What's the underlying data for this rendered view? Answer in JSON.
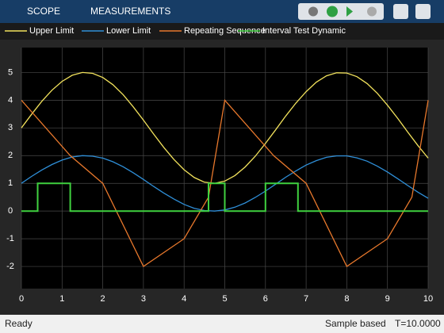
{
  "toolbar": {
    "tabs": [
      "SCOPE",
      "MEASUREMENTS"
    ]
  },
  "chart_data": {
    "type": "line",
    "grid": true,
    "xlim": [
      0,
      10
    ],
    "ylim": [
      -2.8,
      5.9
    ],
    "xticks": [
      0,
      1,
      2,
      3,
      4,
      5,
      6,
      7,
      8,
      9,
      10
    ],
    "yticks": [
      -2,
      -1,
      0,
      1,
      2,
      3,
      4,
      5
    ],
    "series": [
      {
        "name": "Upper Limit",
        "color": "#f2e25c",
        "x": [
          0,
          0.25,
          0.5,
          0.75,
          1,
          1.25,
          1.5,
          1.75,
          2,
          2.25,
          2.5,
          2.75,
          3,
          3.25,
          3.5,
          3.75,
          4,
          4.25,
          4.5,
          4.75,
          5,
          5.25,
          5.5,
          5.75,
          6,
          6.25,
          6.5,
          6.75,
          7,
          7.25,
          7.5,
          7.75,
          8,
          8.25,
          8.5,
          8.75,
          9,
          9.25,
          9.5,
          9.75,
          10
        ],
        "values": [
          3,
          3.49,
          3.96,
          4.36,
          4.68,
          4.9,
          5,
          4.97,
          4.82,
          4.56,
          4.2,
          3.76,
          3.28,
          2.78,
          2.3,
          1.86,
          1.49,
          1.21,
          1.04,
          1,
          1.08,
          1.28,
          1.59,
          1.98,
          2.44,
          2.93,
          3.43,
          3.9,
          4.31,
          4.65,
          4.88,
          4.99,
          4.98,
          4.85,
          4.6,
          4.25,
          3.82,
          3.35,
          2.85,
          2.36,
          1.91
        ]
      },
      {
        "name": "Lower Limit",
        "color": "#2f8fd8",
        "x": [
          0,
          0.25,
          0.5,
          0.75,
          1,
          1.25,
          1.5,
          1.75,
          2,
          2.25,
          2.5,
          2.75,
          3,
          3.25,
          3.5,
          3.75,
          4,
          4.25,
          4.5,
          4.75,
          5,
          5.25,
          5.5,
          5.75,
          6,
          6.25,
          6.5,
          6.75,
          7,
          7.25,
          7.5,
          7.75,
          8,
          8.25,
          8.5,
          8.75,
          9,
          9.25,
          9.5,
          9.75,
          10
        ],
        "values": [
          1,
          1.25,
          1.48,
          1.68,
          1.84,
          1.95,
          2,
          1.98,
          1.91,
          1.78,
          1.6,
          1.38,
          1.14,
          0.89,
          0.65,
          0.43,
          0.24,
          0.1,
          0.02,
          0,
          0.04,
          0.14,
          0.29,
          0.49,
          0.72,
          0.97,
          1.22,
          1.45,
          1.66,
          1.82,
          1.94,
          1.99,
          1.99,
          1.92,
          1.8,
          1.62,
          1.41,
          1.17,
          0.92,
          0.68,
          0.46
        ]
      },
      {
        "name": "Repeating Sequence",
        "color": "#e8782c",
        "x": [
          0,
          1.2,
          2,
          3,
          4,
          4.6,
          5,
          6.2,
          7,
          8,
          9,
          9.6,
          10
        ],
        "values": [
          4,
          2,
          1,
          -2,
          -1,
          0.5,
          4,
          2,
          1,
          -2,
          -1,
          0.5,
          4
        ]
      },
      {
        "name": "Interval Test Dynamic",
        "color": "#3fd13f",
        "x": [
          0,
          0.4,
          0.4,
          1.2,
          1.2,
          4.6,
          4.6,
          5,
          5,
          6,
          6,
          6.8,
          6.8,
          10
        ],
        "values": [
          0,
          0,
          1,
          1,
          0,
          0,
          1,
          1,
          0,
          0,
          1,
          1,
          0,
          0
        ]
      }
    ]
  },
  "status": {
    "left": "Ready",
    "mode": "Sample based",
    "time": "T=10.0000"
  }
}
